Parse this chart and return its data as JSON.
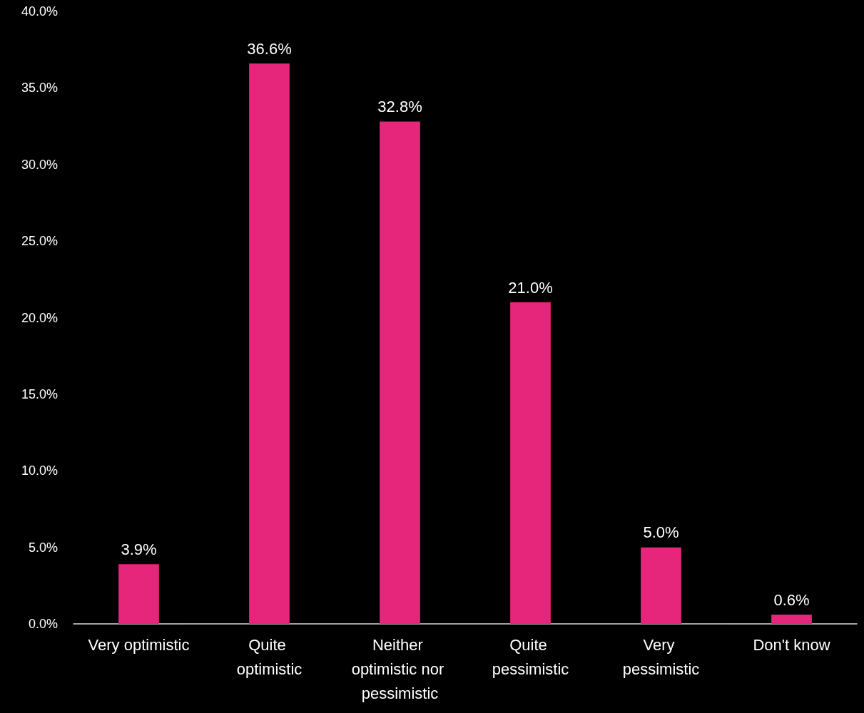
{
  "chart_data": {
    "type": "bar",
    "categories": [
      "Very optimistic",
      "Quite optimistic",
      "Neither optimistic nor pessimistic",
      "Quite pessimistic",
      "Very pessimistic",
      "Don't know"
    ],
    "values": [
      3.9,
      36.6,
      32.8,
      21.0,
      5.0,
      0.6
    ],
    "value_labels": [
      "3.9%",
      "36.6%",
      "32.8%",
      "21.0%",
      "5.0%",
      "0.6%"
    ],
    "color": "#e5267a",
    "ylim": [
      0,
      40
    ],
    "yticks": [
      {
        "value": 0,
        "label": "0.0%"
      },
      {
        "value": 5,
        "label": "5.0%"
      },
      {
        "value": 10,
        "label": "10.0%"
      },
      {
        "value": 15,
        "label": "15.0%"
      },
      {
        "value": 20,
        "label": "20.0%"
      },
      {
        "value": 25,
        "label": "25.0%"
      },
      {
        "value": 30,
        "label": "30.0%"
      },
      {
        "value": 35,
        "label": "35.0%"
      },
      {
        "value": 40,
        "label": "40.0%"
      }
    ],
    "grid": false
  }
}
